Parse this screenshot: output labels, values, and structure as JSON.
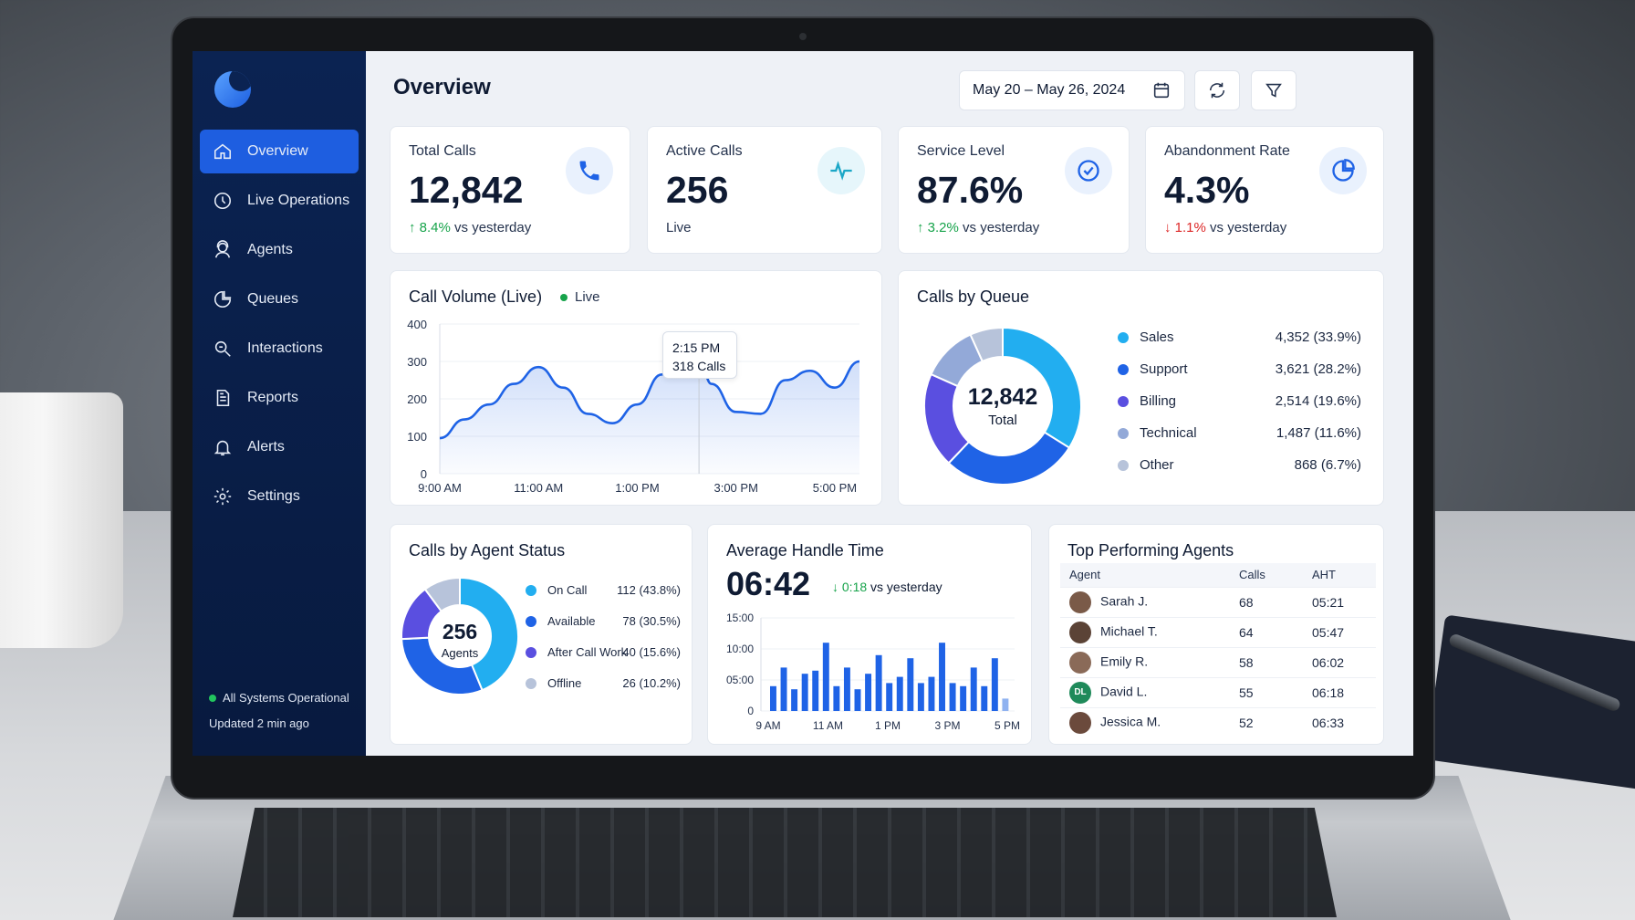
{
  "sidebar": {
    "items": [
      {
        "label": "Overview",
        "icon": "home-icon",
        "active": true
      },
      {
        "label": "Live Operations",
        "icon": "clock-icon"
      },
      {
        "label": "Agents",
        "icon": "agent-icon"
      },
      {
        "label": "Queues",
        "icon": "pie-icon"
      },
      {
        "label": "Interactions",
        "icon": "interactions-icon"
      },
      {
        "label": "Reports",
        "icon": "document-icon"
      },
      {
        "label": "Alerts",
        "icon": "bell-icon"
      },
      {
        "label": "Settings",
        "icon": "gear-icon"
      }
    ],
    "status": "All Systems Operational",
    "updated": "Updated 2 min ago"
  },
  "header": {
    "title": "Overview",
    "date_range": "May 20 – May 26, 2024"
  },
  "kpis": [
    {
      "label": "Total Calls",
      "value": "12,842",
      "delta": "8.4%",
      "direction": "up",
      "note": "vs yesterday",
      "icon": "phone-icon"
    },
    {
      "label": "Active Calls",
      "value": "256",
      "note": "Live",
      "icon": "pulse-icon"
    },
    {
      "label": "Service Level",
      "value": "87.6%",
      "delta": "3.2%",
      "direction": "up",
      "note": "vs yesterday",
      "icon": "check-circle-icon"
    },
    {
      "label": "Abandonment Rate",
      "value": "4.3%",
      "delta": "1.1%",
      "direction": "down",
      "note": "vs yesterday",
      "icon": "pie-chart-icon"
    }
  ],
  "call_volume": {
    "title": "Call Volume (Live)",
    "live_label": "Live",
    "tooltip_time": "2:15 PM",
    "tooltip_value": "318 Calls"
  },
  "calls_by_queue": {
    "title": "Calls by Queue",
    "center_value": "12,842",
    "center_label": "Total"
  },
  "agent_status": {
    "title": "Calls by Agent Status",
    "center_value": "256",
    "center_label": "Agents"
  },
  "aht": {
    "title": "Average Handle Time",
    "value": "06:42",
    "delta": "0:18",
    "note": "vs yesterday"
  },
  "top_agents": {
    "title": "Top Performing Agents",
    "columns": [
      "Agent",
      "Calls",
      "AHT"
    ],
    "rows": [
      {
        "name": "Sarah J.",
        "calls": "68",
        "aht": "05:21",
        "avatar_color": "#7a5a48"
      },
      {
        "name": "Michael T.",
        "calls": "64",
        "aht": "05:47",
        "avatar_color": "#5b4336"
      },
      {
        "name": "Emily R.",
        "calls": "58",
        "aht": "06:02",
        "avatar_color": "#8a6a58"
      },
      {
        "name": "David L.",
        "calls": "55",
        "aht": "06:18",
        "avatar_color": "#1f8a5a",
        "initials": "DL"
      },
      {
        "name": "Jessica M.",
        "calls": "52",
        "aht": "06:33",
        "avatar_color": "#6b4a3c"
      }
    ]
  },
  "chart_data": [
    {
      "type": "area",
      "title": "Call Volume (Live)",
      "x_ticks": [
        "9:00 AM",
        "11:00 AM",
        "1:00 PM",
        "3:00 PM",
        "5:00 PM"
      ],
      "y_ticks": [
        "0",
        "100",
        "200",
        "300",
        "400"
      ],
      "ylim": [
        0,
        400
      ],
      "x_hours": [
        9.0,
        9.5,
        10.0,
        10.5,
        11.0,
        11.5,
        12.0,
        12.5,
        13.0,
        13.5,
        14.0,
        14.25,
        14.5,
        15.0,
        15.5,
        16.0,
        16.5,
        17.0,
        17.5
      ],
      "values": [
        95,
        145,
        185,
        240,
        285,
        230,
        160,
        135,
        185,
        265,
        305,
        318,
        240,
        165,
        160,
        250,
        275,
        230,
        300
      ],
      "highlight": {
        "x_hour": 14.25,
        "value": 318
      }
    },
    {
      "type": "pie",
      "title": "Calls by Queue",
      "labels": [
        "Sales",
        "Support",
        "Billing",
        "Technical",
        "Other"
      ],
      "values": [
        4352,
        3621,
        2514,
        1487,
        868
      ],
      "display": [
        "4,352 (33.9%)",
        "3,621 (28.2%)",
        "2,514 (19.6%)",
        "1,487 (11.6%)",
        "868  (6.7%)"
      ],
      "colors": [
        "#22aef0",
        "#1f63e6",
        "#5a4fe0",
        "#93a9d8",
        "#b7c3da"
      ]
    },
    {
      "type": "pie",
      "title": "Calls by Agent Status",
      "labels": [
        "On Call",
        "Available",
        "After Call Work",
        "Offline"
      ],
      "values": [
        112,
        78,
        40,
        26
      ],
      "display": [
        "112 (43.8%)",
        "78 (30.5%)",
        "40 (15.6%)",
        "26 (10.2%)"
      ],
      "colors": [
        "#22aef0",
        "#1f63e6",
        "#5a4fe0",
        "#b7c3da"
      ]
    },
    {
      "type": "bar",
      "title": "Average Handle Time",
      "x_ticks": [
        "9 AM",
        "11 AM",
        "1 PM",
        "3 PM",
        "5 PM"
      ],
      "y_ticks": [
        "0",
        "05:00",
        "10:00",
        "15:00"
      ],
      "ylim_minutes": [
        0,
        15
      ],
      "values_minutes": [
        4,
        7,
        3.5,
        6,
        6.5,
        11,
        4,
        7,
        3.5,
        6,
        9,
        4.5,
        5.5,
        8.5,
        4.5,
        5.5,
        11,
        4.5,
        4,
        7,
        4,
        8.5,
        2
      ]
    }
  ]
}
